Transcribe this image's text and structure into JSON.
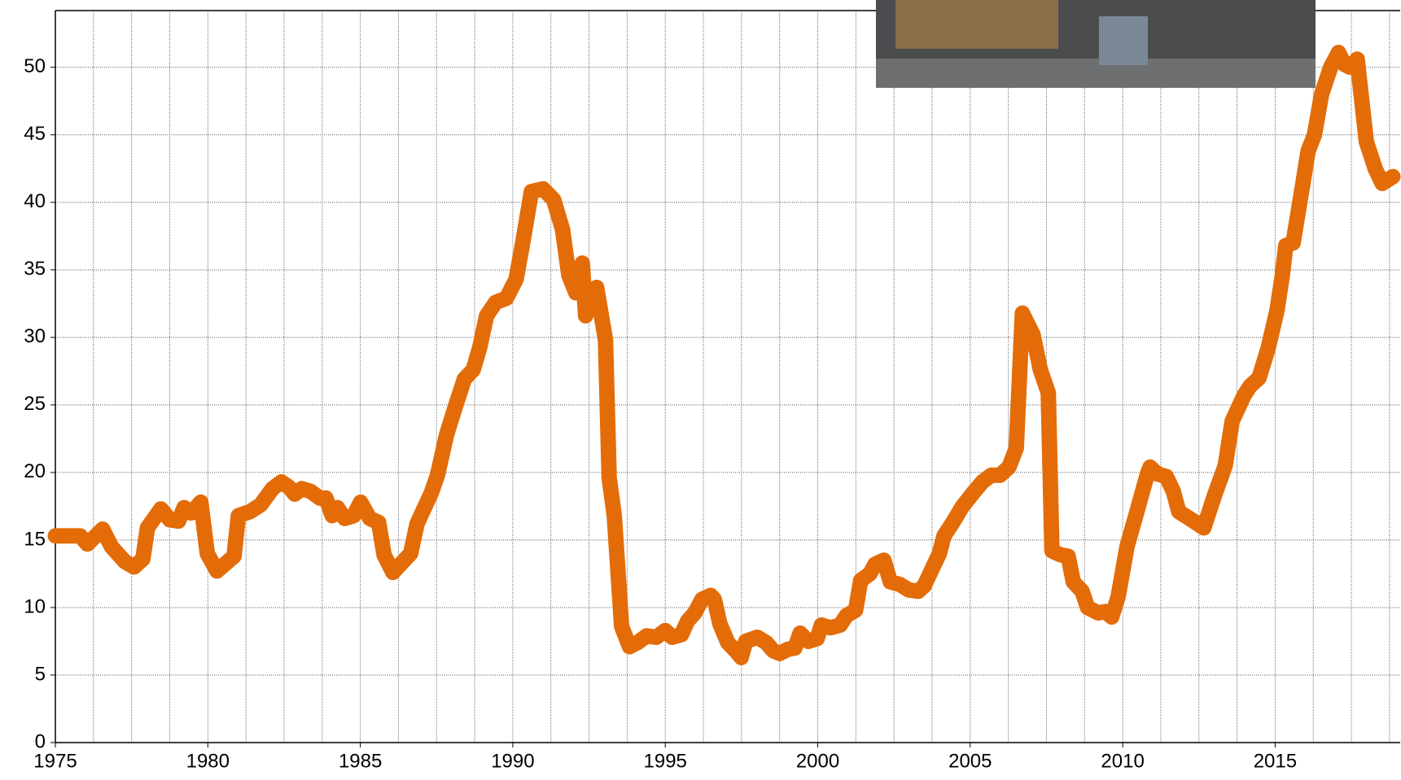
{
  "chart_data": {
    "type": "line",
    "x": [
      1975.0,
      1975.82,
      1976.05,
      1976.55,
      1976.84,
      1977.28,
      1977.58,
      1977.87,
      1978.02,
      1978.46,
      1978.75,
      1979.04,
      1979.22,
      1979.45,
      1979.77,
      1979.98,
      1980.3,
      1980.86,
      1981.0,
      1981.38,
      1981.73,
      1982.12,
      1982.41,
      1982.67,
      1982.85,
      1983.08,
      1983.37,
      1983.67,
      1983.87,
      1984.08,
      1984.25,
      1984.49,
      1984.78,
      1985.01,
      1985.31,
      1985.6,
      1985.78,
      1986.07,
      1986.36,
      1986.65,
      1986.86,
      1987.33,
      1987.53,
      1987.83,
      1988.12,
      1988.41,
      1988.7,
      1988.91,
      1989.14,
      1989.44,
      1989.79,
      1990.11,
      1990.31,
      1990.61,
      1990.99,
      1991.34,
      1991.63,
      1991.84,
      1992.07,
      1992.28,
      1992.39,
      1992.75,
      1993.04,
      1993.16,
      1993.33,
      1993.57,
      1993.83,
      1994.09,
      1994.39,
      1994.71,
      1995.0,
      1995.23,
      1995.53,
      1995.73,
      1995.97,
      1996.2,
      1996.49,
      1996.61,
      1996.79,
      1997.05,
      1997.31,
      1997.49,
      1997.64,
      1998.02,
      1998.31,
      1998.54,
      1998.75,
      1999.01,
      1999.25,
      1999.42,
      1999.69,
      1999.98,
      2000.12,
      2000.42,
      2000.74,
      2000.94,
      2001.24,
      2001.41,
      2001.71,
      2001.88,
      2002.17,
      2002.38,
      2002.7,
      2002.99,
      2003.29,
      2003.49,
      2003.78,
      2003.99,
      2004.14,
      2004.43,
      2004.75,
      2005.1,
      2005.4,
      2005.69,
      2005.98,
      2006.27,
      2006.51,
      2006.71,
      2007.06,
      2007.3,
      2007.56,
      2007.68,
      2007.97,
      2008.21,
      2008.38,
      2008.67,
      2008.85,
      2009.2,
      2009.44,
      2009.64,
      2009.85,
      2010.14,
      2010.43,
      2010.81,
      2010.9,
      2011.13,
      2011.43,
      2011.66,
      2011.84,
      2012.19,
      2012.66,
      2013.01,
      2013.36,
      2013.59,
      2013.98,
      2014.18,
      2014.47,
      2014.77,
      2015.06,
      2015.23,
      2015.35,
      2015.59,
      2015.88,
      2016.08,
      2016.29,
      2016.52,
      2016.82,
      2017.08,
      2017.28,
      2017.46,
      2017.69,
      2017.99,
      2018.28,
      2018.51,
      2018.86
    ],
    "values": [
      15.3,
      15.3,
      14.7,
      15.8,
      14.5,
      13.4,
      13.0,
      13.6,
      15.9,
      17.3,
      16.5,
      16.4,
      17.4,
      17.0,
      17.8,
      14.0,
      12.7,
      13.8,
      16.8,
      17.1,
      17.6,
      18.8,
      19.3,
      18.9,
      18.4,
      18.8,
      18.6,
      18.1,
      18.1,
      16.8,
      17.4,
      16.6,
      16.8,
      17.8,
      16.6,
      16.3,
      13.9,
      12.6,
      13.3,
      14.0,
      16.2,
      18.5,
      19.8,
      22.8,
      24.9,
      26.9,
      27.6,
      29.2,
      31.6,
      32.6,
      32.9,
      34.3,
      36.8,
      40.8,
      41.0,
      40.2,
      38.0,
      34.6,
      33.3,
      35.5,
      31.6,
      33.7,
      29.8,
      19.6,
      16.8,
      8.6,
      7.1,
      7.4,
      7.9,
      7.8,
      8.3,
      7.8,
      8.0,
      9.0,
      9.6,
      10.6,
      10.9,
      10.6,
      8.8,
      7.4,
      6.8,
      6.3,
      7.5,
      7.8,
      7.4,
      6.8,
      6.6,
      6.9,
      7.0,
      8.1,
      7.5,
      7.7,
      8.7,
      8.5,
      8.7,
      9.4,
      9.8,
      12.0,
      12.5,
      13.2,
      13.5,
      11.9,
      11.7,
      11.3,
      11.2,
      11.6,
      13.0,
      14.0,
      15.3,
      16.3,
      17.5,
      18.5,
      19.3,
      19.8,
      19.8,
      20.4,
      21.8,
      31.8,
      30.2,
      27.6,
      25.9,
      14.2,
      13.9,
      13.8,
      11.9,
      11.2,
      10.0,
      9.6,
      9.7,
      9.3,
      10.8,
      14.5,
      16.8,
      19.9,
      20.4,
      19.9,
      19.7,
      18.6,
      17.1,
      16.6,
      15.9,
      18.3,
      20.5,
      23.8,
      25.7,
      26.4,
      27.0,
      29.2,
      32.0,
      34.5,
      36.8,
      37.0,
      41.0,
      43.8,
      45.0,
      48.0,
      50.0,
      51.1,
      50.2,
      50.0,
      50.6,
      44.5,
      42.5,
      41.4,
      41.9
    ],
    "color": "#e36c09",
    "xlim": [
      1975,
      2019.1
    ],
    "ylim": [
      0,
      54.2
    ],
    "xticks": [
      1975,
      1980,
      1985,
      1990,
      1995,
      2000,
      2005,
      2010,
      2015
    ],
    "xminorticks": [
      1975,
      1976.25,
      1977.5,
      1978.75,
      1980,
      1981.25,
      1982.5,
      1983.75,
      1985,
      1986.25,
      1987.5,
      1988.75,
      1990,
      1991.25,
      1992.5,
      1993.75,
      1995,
      1996.25,
      1997.5,
      1998.75,
      2000,
      2001.25,
      2002.5,
      2003.75,
      2005,
      2006.25,
      2007.5,
      2008.75,
      2010,
      2011.25,
      2012.5,
      2013.75,
      2015,
      2016.25,
      2017.5,
      2018.75
    ],
    "yticks": [
      0,
      5,
      10,
      15,
      20,
      25,
      30,
      35,
      40,
      45,
      50
    ],
    "grid": true
  }
}
